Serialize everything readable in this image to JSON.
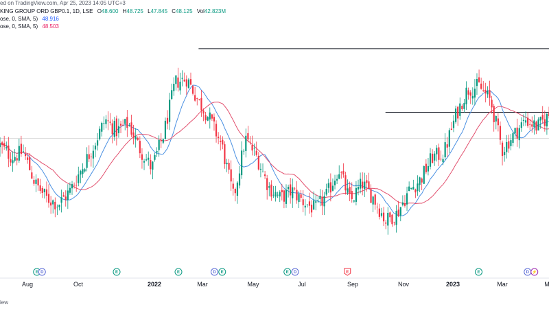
{
  "header": {
    "published": "ed on TradingView.com, Apr 25, 2023 14:05 UTC+3",
    "symbol": "KING GROUP ORD GBP0.1, 1D, LSE",
    "o_label": "O",
    "o_value": "48.600",
    "h_label": "H",
    "h_value": "48.725",
    "l_label": "L",
    "l_value": "47.845",
    "c_label": "C",
    "c_value": "48.125",
    "vol_label": "Vol",
    "vol_value": "42.823M",
    "ma1_label": "ose, 0, SMA, 5)",
    "ma1_value": "48.916",
    "ma2_label": "ose, 0, SMA, 5)",
    "ma2_value": "48.503"
  },
  "footer": {
    "text": "iew"
  },
  "colors": {
    "up": "#089981",
    "down": "#f23645",
    "ma_fast": "#4a90e2",
    "ma_slow": "#e2506e",
    "earnings": "#089981",
    "dividend": "#5b6bd6",
    "earnings_next": "#f23645",
    "split": "#9c27b0",
    "hline": "#131722",
    "grid": "#d9d9d9"
  },
  "chart_data": {
    "type": "candlestick",
    "instrument": "KING GROUP ORD GBP0.1",
    "interval": "1D",
    "exchange": "LSE",
    "x_axis_labels": [
      "Aug",
      "Oct",
      "2022",
      "Mar",
      "May",
      "Jul",
      "Sep",
      "Nov",
      "2023",
      "Mar",
      "M"
    ],
    "bold_x_labels": [
      "2022",
      "2023"
    ],
    "price_range": [
      30.0,
      58.0
    ],
    "ohlc_points": [
      {
        "t": 0,
        "p": 44.0
      },
      {
        "t": 1,
        "p": 42.5
      },
      {
        "t": 2,
        "p": 43.2
      },
      {
        "t": 3,
        "p": 39.0
      },
      {
        "t": 4,
        "p": 37.0
      },
      {
        "t": 5,
        "p": 36.2
      },
      {
        "t": 6,
        "p": 38.0
      },
      {
        "t": 7,
        "p": 41.0
      },
      {
        "t": 8,
        "p": 44.0
      },
      {
        "t": 9,
        "p": 47.5
      },
      {
        "t": 10,
        "p": 46.0
      },
      {
        "t": 11,
        "p": 47.0
      },
      {
        "t": 12,
        "p": 43.5
      },
      {
        "t": 13,
        "p": 41.0
      },
      {
        "t": 14,
        "p": 45.5
      },
      {
        "t": 15,
        "p": 52.5
      },
      {
        "t": 16,
        "p": 53.0
      },
      {
        "t": 17,
        "p": 50.0
      },
      {
        "t": 18,
        "p": 47.5
      },
      {
        "t": 19,
        "p": 44.0
      },
      {
        "t": 20,
        "p": 37.0
      },
      {
        "t": 21,
        "p": 45.0
      },
      {
        "t": 22,
        "p": 42.5
      },
      {
        "t": 23,
        "p": 38.5
      },
      {
        "t": 24,
        "p": 37.0
      },
      {
        "t": 25,
        "p": 38.0
      },
      {
        "t": 26,
        "p": 36.5
      },
      {
        "t": 27,
        "p": 35.5
      },
      {
        "t": 28,
        "p": 37.5
      },
      {
        "t": 29,
        "p": 41.0
      },
      {
        "t": 30,
        "p": 36.5
      },
      {
        "t": 31,
        "p": 39.0
      },
      {
        "t": 32,
        "p": 37.0
      },
      {
        "t": 33,
        "p": 34.0
      },
      {
        "t": 34,
        "p": 35.0
      },
      {
        "t": 35,
        "p": 38.0
      },
      {
        "t": 36,
        "p": 39.5
      },
      {
        "t": 37,
        "p": 42.5
      },
      {
        "t": 38,
        "p": 43.0
      },
      {
        "t": 39,
        "p": 48.0
      },
      {
        "t": 40,
        "p": 51.5
      },
      {
        "t": 41,
        "p": 52.0
      },
      {
        "t": 42,
        "p": 50.0
      },
      {
        "t": 43,
        "p": 43.5
      },
      {
        "t": 44,
        "p": 45.5
      },
      {
        "t": 45,
        "p": 47.5
      },
      {
        "t": 46,
        "p": 46.5
      },
      {
        "t": 47,
        "p": 48.1
      }
    ],
    "moving_averages": [
      {
        "name": "SMA fast",
        "values_from": "ohlc",
        "period": 5,
        "last": 48.916
      },
      {
        "name": "SMA slow",
        "values_from": "ohlc",
        "period": 5,
        "last": 48.503
      }
    ],
    "horizontal_levels": [
      {
        "price": 57.0,
        "from_t": 17,
        "to_t": 47
      },
      {
        "price": 48.5,
        "from_t": 33,
        "to_t": 47
      },
      {
        "price": 45.0,
        "from_t": 0,
        "to_t": 47,
        "style": "grey"
      }
    ],
    "events": [
      {
        "t": 4.3,
        "type": "E"
      },
      {
        "t": 4.9,
        "type": "D"
      },
      {
        "t": 13.6,
        "type": "E"
      },
      {
        "t": 20.8,
        "type": "E"
      },
      {
        "t": 25.0,
        "type": "D"
      },
      {
        "t": 25.9,
        "type": "E"
      },
      {
        "t": 33.5,
        "type": "E"
      },
      {
        "t": 34.4,
        "type": "D"
      },
      {
        "t": 40.5,
        "type": "E",
        "upcoming": true
      },
      {
        "t": 55.8,
        "type": "E"
      },
      {
        "t": 61.5,
        "type": "D"
      },
      {
        "t": 62.3,
        "type": "S"
      }
    ],
    "title": "",
    "xlabel": "",
    "ylabel": ""
  }
}
